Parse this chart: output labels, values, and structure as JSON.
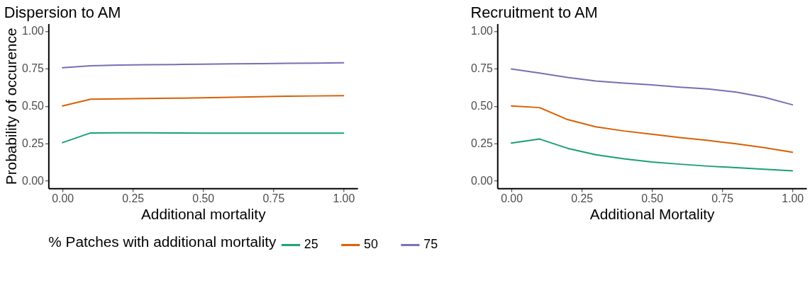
{
  "chart_data": [
    {
      "type": "line",
      "title": "Dispersion to AM",
      "xlabel": "Additional mortality",
      "ylabel": "Probability of occurence",
      "legend_title": "% Patches with additional mortality",
      "legend": "bottom",
      "grid": false,
      "x": [
        0,
        0.1,
        0.2,
        0.3,
        0.4,
        0.5,
        0.6,
        0.7,
        0.8,
        0.9,
        1.0
      ],
      "series": [
        {
          "name": "25",
          "color": "#1b9e77",
          "values": [
            0.255,
            0.32,
            0.321,
            0.321,
            0.32,
            0.318,
            0.318,
            0.318,
            0.318,
            0.318,
            0.318
          ]
        },
        {
          "name": "50",
          "color": "#d95f02",
          "values": [
            0.5,
            0.545,
            0.548,
            0.55,
            0.552,
            0.555,
            0.558,
            0.562,
            0.565,
            0.567,
            0.569
          ]
        },
        {
          "name": "75",
          "color": "#7570b3",
          "values": [
            0.755,
            0.768,
            0.773,
            0.775,
            0.777,
            0.779,
            0.781,
            0.783,
            0.785,
            0.786,
            0.788
          ]
        }
      ],
      "xlim": [
        -0.05,
        1.05
      ],
      "xticks": [
        {
          "value": 0,
          "label": "0.00"
        },
        {
          "value": 0.25,
          "label": "0.25"
        },
        {
          "value": 0.5,
          "label": "0.50"
        },
        {
          "value": 0.75,
          "label": "0.75"
        },
        {
          "value": 1,
          "label": "1.00"
        }
      ],
      "ylim": [
        -0.05,
        1.05
      ],
      "yticks": [
        {
          "value": 0,
          "label": "0.00"
        },
        {
          "value": 0.25,
          "label": "0.25"
        },
        {
          "value": 0.5,
          "label": "0.50"
        },
        {
          "value": 0.75,
          "label": "0.75"
        },
        {
          "value": 1,
          "label": "1.00"
        }
      ]
    },
    {
      "type": "line",
      "title": "Recruitment to AM",
      "xlabel": "Additional Mortality",
      "grid": false,
      "x": [
        0,
        0.1,
        0.2,
        0.3,
        0.4,
        0.5,
        0.6,
        0.7,
        0.8,
        0.9,
        1.0
      ],
      "series": [
        {
          "name": "25",
          "color": "#1b9e77",
          "values": [
            0.252,
            0.279,
            0.217,
            0.174,
            0.147,
            0.126,
            0.111,
            0.098,
            0.088,
            0.077,
            0.067
          ]
        },
        {
          "name": "50",
          "color": "#d95f02",
          "values": [
            0.5,
            0.489,
            0.409,
            0.361,
            0.333,
            0.311,
            0.289,
            0.27,
            0.247,
            0.221,
            0.191
          ]
        },
        {
          "name": "75",
          "color": "#7570b3",
          "values": [
            0.747,
            0.72,
            0.69,
            0.667,
            0.653,
            0.641,
            0.626,
            0.614,
            0.592,
            0.558,
            0.508
          ]
        }
      ],
      "xlim": [
        -0.05,
        1.05
      ],
      "xticks": [
        {
          "value": 0,
          "label": "0.00"
        },
        {
          "value": 0.25,
          "label": "0.25"
        },
        {
          "value": 0.5,
          "label": "0.50"
        },
        {
          "value": 0.75,
          "label": "0.75"
        },
        {
          "value": 1,
          "label": "1.00"
        }
      ],
      "ylim": [
        -0.05,
        1.05
      ],
      "yticks": [
        {
          "value": 0,
          "label": "0.00"
        },
        {
          "value": 0.25,
          "label": "0.25"
        },
        {
          "value": 0.5,
          "label": "0.50"
        },
        {
          "value": 0.75,
          "label": "0.75"
        },
        {
          "value": 1,
          "label": "1.00"
        }
      ]
    }
  ]
}
